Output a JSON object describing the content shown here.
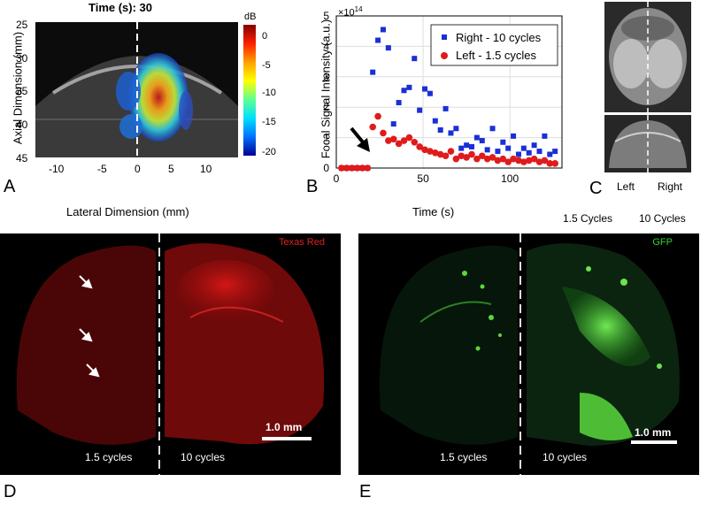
{
  "panels": {
    "a": {
      "letter": "A",
      "title": "Time (s): 30",
      "ylabel": "Axial Dimension (mm)",
      "xlabel": "Lateral Dimension (mm)",
      "y_ticks": [
        "25",
        "30",
        "35",
        "40",
        "45"
      ],
      "x_ticks": [
        "-10",
        "-5",
        "0",
        "5",
        "10"
      ],
      "colorbar_unit": "dB",
      "colorbar_ticks": [
        "0",
        "-5",
        "-10",
        "-15",
        "-20"
      ]
    },
    "b": {
      "letter": "B",
      "exponent_base": "×10",
      "exponent_power": "14"
    },
    "c": {
      "letter": "C",
      "left_label": "Left",
      "right_label": "Right",
      "cycles_left": "1.5 Cycles",
      "cycles_right": "10 Cycles"
    },
    "d": {
      "letter": "D",
      "stain": "Texas Red",
      "scale": "1.0 mm",
      "left_label": "1.5 cycles",
      "right_label": "10 cycles"
    },
    "e": {
      "letter": "E",
      "stain": "GFP",
      "scale": "1.0 mm",
      "left_label": "1.5 cycles",
      "right_label": "10 cycles"
    }
  },
  "colors": {
    "right_series": "#1a2fd6",
    "left_series": "#e01b1b",
    "texas_red": "#d81b1b",
    "gfp": "#35d12c"
  },
  "chart_data": {
    "type": "scatter",
    "title": "",
    "xlabel": "Time (s)",
    "ylabel": "Focal Signal Intensity (a.u.)",
    "xlim": [
      0,
      130
    ],
    "ylim": [
      0,
      5
    ],
    "y_scale_note": "×10^14",
    "x_ticks": [
      0,
      50,
      100
    ],
    "y_ticks": [
      0,
      1,
      2,
      3,
      4,
      5
    ],
    "grid": true,
    "legend_position": "top-right",
    "annotation": "arrow pointing at onset near t = 20 s",
    "series": [
      {
        "name": "Right - 10 cycles",
        "marker": "square",
        "x": [
          3,
          6,
          9,
          12,
          15,
          18,
          21,
          24,
          27,
          30,
          33,
          36,
          39,
          42,
          45,
          48,
          51,
          54,
          57,
          60,
          63,
          66,
          69,
          72,
          75,
          78,
          81,
          84,
          87,
          90,
          93,
          96,
          99,
          102,
          105,
          108,
          111,
          114,
          117,
          120,
          123,
          126
        ],
        "y": [
          0,
          0,
          0,
          0,
          0,
          0,
          3.15,
          4.2,
          4.55,
          3.95,
          1.45,
          2.15,
          2.55,
          2.65,
          3.6,
          1.9,
          2.6,
          2.45,
          1.55,
          1.25,
          1.95,
          1.15,
          1.3,
          0.65,
          0.75,
          0.7,
          1.0,
          0.9,
          0.6,
          1.3,
          0.55,
          0.85,
          0.65,
          1.05,
          0.45,
          0.65,
          0.5,
          0.75,
          0.55,
          1.05,
          0.45,
          0.55
        ]
      },
      {
        "name": "Left - 1.5 cycles",
        "marker": "circle",
        "x": [
          3,
          6,
          9,
          12,
          15,
          18,
          21,
          24,
          27,
          30,
          33,
          36,
          39,
          42,
          45,
          48,
          51,
          54,
          57,
          60,
          63,
          66,
          69,
          72,
          75,
          78,
          81,
          84,
          87,
          90,
          93,
          96,
          99,
          102,
          105,
          108,
          111,
          114,
          117,
          120,
          123,
          126
        ],
        "y": [
          0,
          0,
          0,
          0,
          0,
          0,
          1.35,
          1.7,
          1.15,
          0.9,
          0.95,
          0.8,
          0.9,
          1.0,
          0.85,
          0.7,
          0.6,
          0.55,
          0.5,
          0.45,
          0.4,
          0.55,
          0.3,
          0.4,
          0.35,
          0.45,
          0.3,
          0.4,
          0.3,
          0.35,
          0.25,
          0.3,
          0.2,
          0.3,
          0.25,
          0.2,
          0.25,
          0.3,
          0.2,
          0.25,
          0.15,
          0.15
        ]
      }
    ]
  }
}
